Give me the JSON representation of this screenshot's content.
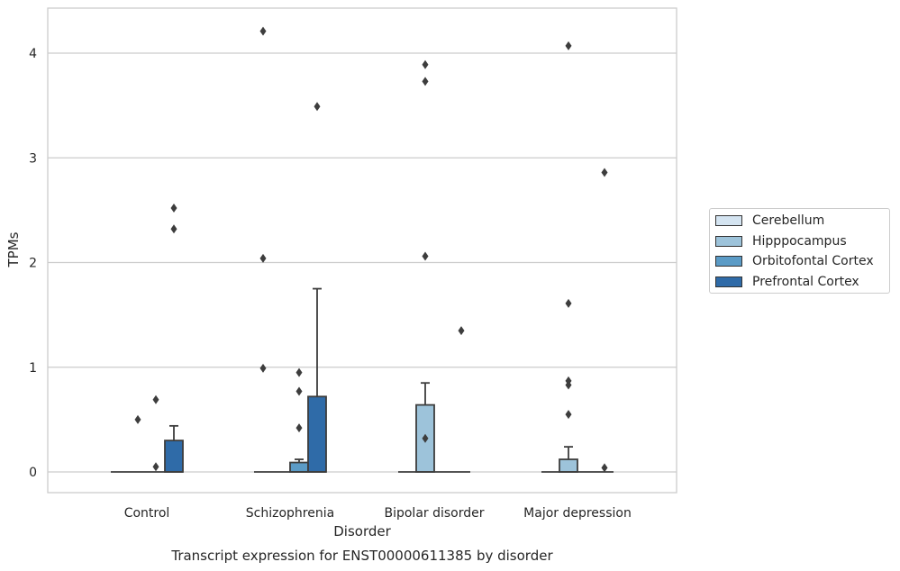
{
  "chart_data": {
    "type": "box",
    "title": "Transcript expression for ENST00000611385 by disorder",
    "xlabel": "Disorder",
    "ylabel": "TPMs",
    "ylim": [
      -0.2,
      4.42
    ],
    "yticks": [
      0,
      1,
      2,
      3,
      4
    ],
    "grid": "horizontal",
    "legend_position": "right",
    "categories": [
      "Control",
      "Schizophrenia",
      "Bipolar disorder",
      "Major depression"
    ],
    "series": [
      {
        "name": "Cerebellum",
        "color": "#d4e4f1",
        "boxes": [
          {
            "q1": 0,
            "median": 0,
            "q3": 0,
            "whisker_low": 0,
            "whisker_high": 0,
            "outliers": []
          },
          {
            "q1": 0,
            "median": 0,
            "q3": 0,
            "whisker_low": 0,
            "whisker_high": 0,
            "outliers": [
              4.21,
              2.04,
              0.99
            ]
          },
          {
            "q1": 0,
            "median": 0,
            "q3": 0,
            "whisker_low": 0,
            "whisker_high": 0,
            "outliers": []
          },
          {
            "q1": 0,
            "median": 0,
            "q3": 0,
            "whisker_low": 0,
            "whisker_high": 0,
            "outliers": []
          }
        ]
      },
      {
        "name": "Hipppocampus",
        "color": "#9dc3da",
        "boxes": [
          {
            "q1": 0,
            "median": 0,
            "q3": 0,
            "whisker_low": 0,
            "whisker_high": 0,
            "outliers": [
              0.5
            ]
          },
          {
            "q1": 0,
            "median": 0,
            "q3": 0,
            "whisker_low": 0,
            "whisker_high": 0,
            "outliers": []
          },
          {
            "q1": 0,
            "median": 0,
            "q3": 0.64,
            "whisker_low": 0,
            "whisker_high": 0.85,
            "outliers": [
              3.89,
              3.73,
              2.06,
              0.32
            ]
          },
          {
            "q1": 0,
            "median": 0,
            "q3": 0.12,
            "whisker_low": 0,
            "whisker_high": 0.24,
            "outliers": [
              4.07,
              1.61,
              0.87,
              0.83,
              0.55
            ]
          }
        ]
      },
      {
        "name": "Orbitofontal Cortex",
        "color": "#5b9bc6",
        "boxes": [
          {
            "q1": 0,
            "median": 0,
            "q3": 0,
            "whisker_low": 0,
            "whisker_high": 0,
            "outliers": [
              0.69,
              0.05
            ]
          },
          {
            "q1": 0,
            "median": 0,
            "q3": 0.09,
            "whisker_low": 0,
            "whisker_high": 0.12,
            "outliers": [
              0.95,
              0.77,
              0.42
            ]
          },
          {
            "q1": 0,
            "median": 0,
            "q3": 0,
            "whisker_low": 0,
            "whisker_high": 0,
            "outliers": []
          },
          {
            "q1": 0,
            "median": 0,
            "q3": 0,
            "whisker_low": 0,
            "whisker_high": 0,
            "outliers": []
          }
        ]
      },
      {
        "name": "Prefrontal Cortex",
        "color": "#2f6ba8",
        "boxes": [
          {
            "q1": 0,
            "median": 0,
            "q3": 0.3,
            "whisker_low": 0,
            "whisker_high": 0.44,
            "outliers": [
              2.52,
              2.32
            ]
          },
          {
            "q1": 0,
            "median": 0,
            "q3": 0.72,
            "whisker_low": 0,
            "whisker_high": 1.75,
            "outliers": [
              3.49
            ]
          },
          {
            "q1": 0,
            "median": 0,
            "q3": 0,
            "whisker_low": 0,
            "whisker_high": 0,
            "outliers": [
              1.35
            ]
          },
          {
            "q1": 0,
            "median": 0,
            "q3": 0,
            "whisker_low": 0,
            "whisker_high": 0,
            "outliers": [
              2.86,
              0.04
            ]
          }
        ]
      }
    ]
  }
}
